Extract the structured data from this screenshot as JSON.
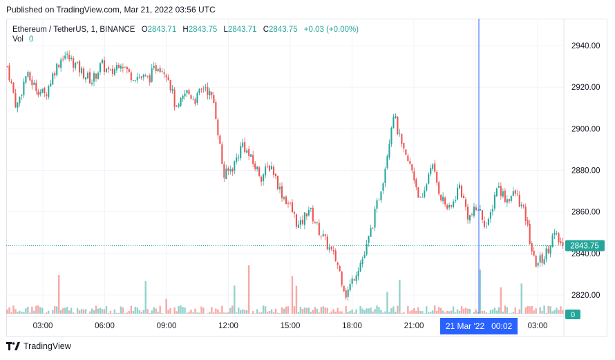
{
  "header": {
    "published": "Published on TradingView.com, Mar 21, 2022 03:56 UTC"
  },
  "legend": {
    "symbol": "Ethereum / TetherUS, 1, BINANCE",
    "open_label": "O",
    "open": "2843.71",
    "high_label": "H",
    "high": "2843.75",
    "low_label": "L",
    "low": "2843.71",
    "close_label": "C",
    "close": "2843.75",
    "change": "+0.03 (+0.00%)",
    "vol_label": "Vol",
    "vol_value": "0"
  },
  "footer": {
    "brand": "TradingView",
    "logo_icon": "tradingview-logo-icon"
  },
  "colors": {
    "up": "#26a69a",
    "down": "#ef5350",
    "crosshair": "#2962ff",
    "price_badge": "#26a69a",
    "grid": "#f0f3fa"
  },
  "chart_data": {
    "type": "candlestick",
    "title": "Ethereum / TetherUS, 1, BINANCE",
    "x_ticks": [
      "03:00",
      "06:00",
      "09:00",
      "12:00",
      "15:00",
      "18:00",
      "21:00",
      "03:00"
    ],
    "y_ticks": [
      "2940.00",
      "2920.00",
      "2900.00",
      "2880.00",
      "2860.00",
      "2840.00",
      "2820.00"
    ],
    "ylim": [
      2811,
      2953
    ],
    "last_price": "2843.75",
    "volume_axis_label": "0",
    "crosshair_time_label": "21 Mar '22   00:02",
    "grid": true,
    "close_series": [
      {
        "t": "01:52",
        "close": 2930
      },
      {
        "t": "02:15",
        "close": 2910
      },
      {
        "t": "02:40",
        "close": 2926
      },
      {
        "t": "03:00",
        "close": 2920
      },
      {
        "t": "03:30",
        "close": 2916
      },
      {
        "t": "04:00",
        "close": 2928
      },
      {
        "t": "04:20",
        "close": 2936
      },
      {
        "t": "04:50",
        "close": 2932
      },
      {
        "t": "05:10",
        "close": 2927
      },
      {
        "t": "05:40",
        "close": 2923
      },
      {
        "t": "06:20",
        "close": 2931
      },
      {
        "t": "06:50",
        "close": 2926
      },
      {
        "t": "07:10",
        "close": 2933
      },
      {
        "t": "07:40",
        "close": 2926
      },
      {
        "t": "08:10",
        "close": 2925
      },
      {
        "t": "08:40",
        "close": 2924
      },
      {
        "t": "09:00",
        "close": 2931
      },
      {
        "t": "09:40",
        "close": 2927
      },
      {
        "t": "10:10",
        "close": 2908
      },
      {
        "t": "10:40",
        "close": 2918
      },
      {
        "t": "11:10",
        "close": 2914
      },
      {
        "t": "11:40",
        "close": 2921
      },
      {
        "t": "12:05",
        "close": 2912
      },
      {
        "t": "12:30",
        "close": 2877
      },
      {
        "t": "12:50",
        "close": 2882
      },
      {
        "t": "13:10",
        "close": 2893
      },
      {
        "t": "13:40",
        "close": 2884
      },
      {
        "t": "14:10",
        "close": 2877
      },
      {
        "t": "14:40",
        "close": 2883
      },
      {
        "t": "15:00",
        "close": 2870
      },
      {
        "t": "15:30",
        "close": 2863
      },
      {
        "t": "16:00",
        "close": 2852
      },
      {
        "t": "16:30",
        "close": 2862
      },
      {
        "t": "16:50",
        "close": 2852
      },
      {
        "t": "17:20",
        "close": 2844
      },
      {
        "t": "17:45",
        "close": 2836
      },
      {
        "t": "18:00",
        "close": 2820
      },
      {
        "t": "18:30",
        "close": 2831
      },
      {
        "t": "19:00",
        "close": 2840
      },
      {
        "t": "19:30",
        "close": 2858
      },
      {
        "t": "20:00",
        "close": 2878
      },
      {
        "t": "20:20",
        "close": 2908
      },
      {
        "t": "20:40",
        "close": 2889
      },
      {
        "t": "21:00",
        "close": 2880
      },
      {
        "t": "21:20",
        "close": 2863
      },
      {
        "t": "21:50",
        "close": 2884
      },
      {
        "t": "22:20",
        "close": 2868
      },
      {
        "t": "22:50",
        "close": 2860
      },
      {
        "t": "23:10",
        "close": 2873
      },
      {
        "t": "23:40",
        "close": 2857
      },
      {
        "t": "00:02",
        "close": 2862
      },
      {
        "t": "00:30",
        "close": 2852
      },
      {
        "t": "01:00",
        "close": 2873
      },
      {
        "t": "01:30",
        "close": 2866
      },
      {
        "t": "02:00",
        "close": 2869
      },
      {
        "t": "02:20",
        "close": 2858
      },
      {
        "t": "02:40",
        "close": 2835
      },
      {
        "t": "03:00",
        "close": 2838
      },
      {
        "t": "03:30",
        "close": 2849
      },
      {
        "t": "03:56",
        "close": 2843.75
      }
    ]
  }
}
